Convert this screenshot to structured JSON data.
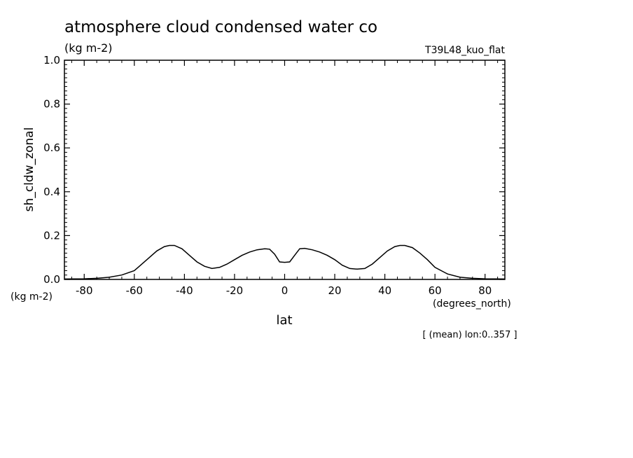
{
  "title": "atmosphere cloud condensed water co",
  "units_label": "(kg m-2)",
  "run_label": "T39L48_kuo_flat",
  "footnote": "[ (mean) lon:0..357 ]",
  "chart_data": {
    "type": "line",
    "title": "atmosphere cloud condensed water co",
    "xlabel": "lat",
    "xunits": "(degrees_north)",
    "ylabel": "sh_cldw_zonal",
    "yunits": "(kg m-2)",
    "xlim": [
      -87.9,
      87.9
    ],
    "ylim": [
      0,
      1.0
    ],
    "xticks": [
      -80,
      -60,
      -40,
      -20,
      0,
      20,
      40,
      60,
      80
    ],
    "xtick_labels": [
      "-80",
      "-60",
      "-40",
      "-20",
      "0",
      "20",
      "40",
      "60",
      "80"
    ],
    "yticks": [
      0,
      0.2,
      0.4,
      0.6,
      0.8,
      1.0
    ],
    "ytick_labels": [
      "0.0",
      "0.2",
      "0.4",
      "0.6",
      "0.8",
      "1.0"
    ],
    "grid": false,
    "series": [
      {
        "x": [
          -87.9,
          -80,
          -75,
          -70,
          -65,
          -60,
          -57,
          -54,
          -51,
          -48,
          -46,
          -44,
          -41,
          -38,
          -35,
          -32,
          -29,
          -26,
          -23,
          -20,
          -17,
          -14,
          -11,
          -8,
          -6,
          -4,
          -2,
          0,
          2,
          4,
          6,
          8,
          11,
          14,
          17,
          20,
          23,
          26,
          29,
          32,
          35,
          38,
          41,
          44,
          46,
          48,
          51,
          54,
          57,
          60,
          65,
          70,
          75,
          80,
          87.9
        ],
        "y": [
          0.002,
          0.003,
          0.005,
          0.01,
          0.02,
          0.04,
          0.07,
          0.1,
          0.13,
          0.15,
          0.155,
          0.155,
          0.14,
          0.11,
          0.08,
          0.06,
          0.05,
          0.055,
          0.07,
          0.09,
          0.11,
          0.125,
          0.135,
          0.14,
          0.138,
          0.115,
          0.08,
          0.078,
          0.08,
          0.11,
          0.14,
          0.142,
          0.135,
          0.125,
          0.11,
          0.09,
          0.065,
          0.05,
          0.047,
          0.05,
          0.07,
          0.1,
          0.13,
          0.15,
          0.155,
          0.155,
          0.145,
          0.12,
          0.09,
          0.055,
          0.025,
          0.01,
          0.005,
          0.003,
          0.002
        ]
      }
    ]
  }
}
